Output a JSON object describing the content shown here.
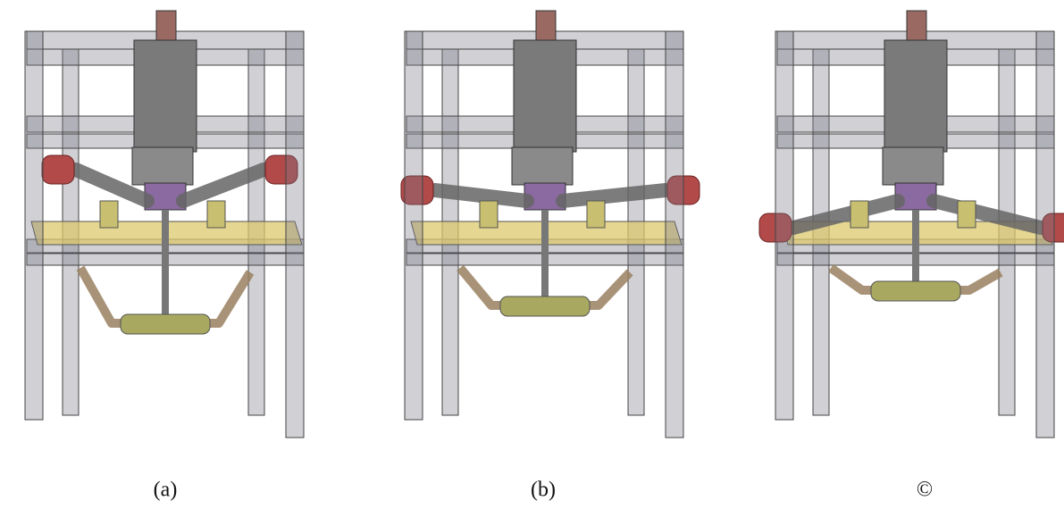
{
  "panels": [
    {
      "caption": "(a)"
    },
    {
      "caption": "(b)"
    },
    {
      "caption": "©"
    }
  ]
}
